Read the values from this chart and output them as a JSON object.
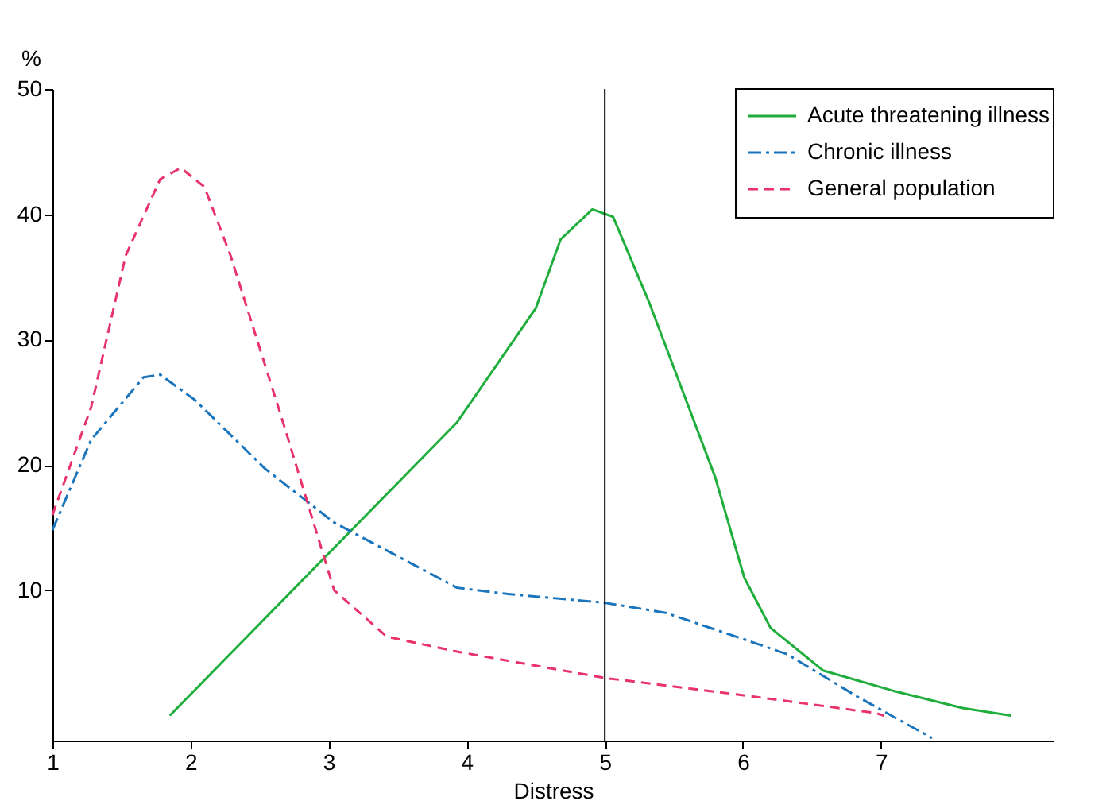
{
  "chart_data": {
    "type": "line",
    "xlabel": "Distress",
    "ylabel": "%",
    "xlim": [
      1,
      8.25
    ],
    "ylim": [
      -2,
      50
    ],
    "xticks": [
      1,
      2,
      3,
      4,
      5,
      6,
      7
    ],
    "yticks": [
      10,
      20,
      30,
      40,
      50
    ],
    "grid": false,
    "legend": "top right",
    "marker": "none",
    "ref_lines": [
      {
        "axis": "x",
        "value": 5,
        "color": "#000000"
      }
    ],
    "series": [
      {
        "name": "Acute threatening illness",
        "color": "#1fae3c",
        "line_style": "solid",
        "x": [
          1.85,
          3.93,
          4.5,
          4.68,
          4.91,
          5.06,
          5.32,
          5.8,
          6.01,
          6.2,
          6.58,
          7.08,
          7.59,
          7.94
        ],
        "values": [
          0,
          23.4,
          32.5,
          38,
          40.4,
          39.8,
          33,
          19,
          11,
          7,
          3.6,
          2,
          0.6,
          0
        ]
      },
      {
        "name": "Chronic illness",
        "color": "#1b75bc",
        "line_style": "dashdot",
        "x": [
          1,
          1.28,
          1.66,
          1.78,
          2.03,
          2.54,
          3.04,
          3.93,
          4.3,
          5,
          5.44,
          5.95,
          6.32,
          6.83,
          7.37
        ],
        "values": [
          14.8,
          22,
          27,
          27.2,
          25.2,
          19.7,
          15.4,
          10.2,
          9.7,
          9,
          8.2,
          6.3,
          4.9,
          1.5,
          -1.8
        ]
      },
      {
        "name": "General population",
        "color": "#e8336b",
        "line_style": "dashed",
        "x": [
          1,
          1.28,
          1.53,
          1.78,
          1.93,
          2.1,
          2.29,
          2.67,
          3.04,
          3.42,
          3.93,
          5,
          5.95,
          6.96,
          7.02
        ],
        "values": [
          16,
          24.6,
          36.7,
          42.8,
          43.7,
          42.2,
          36.7,
          23.4,
          10,
          6.3,
          5.1,
          3,
          1.7,
          0.2,
          0
        ]
      }
    ]
  }
}
